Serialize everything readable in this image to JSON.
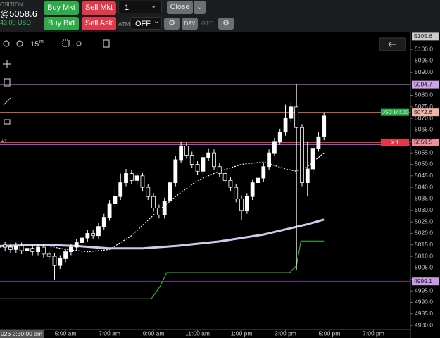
{
  "toolbar": {
    "position": "OSITION",
    "avg_price": "@5058.6",
    "pnl": "43.00 USD",
    "buy_mkt": "Buy Mkt",
    "sell_mkt": "Sell Mkt",
    "buy_bid": "Buy Bid",
    "sell_ask": "Sell Ask",
    "quantity": "1",
    "close": "Close",
    "atm": "ATM",
    "atm_value": "OFF",
    "day": "DAY",
    "gtc": "GTC"
  },
  "chart_toolbar": {
    "interval": "15",
    "interval_unit": "m",
    "order_qty": "+1"
  },
  "chart_data": {
    "type": "candlestick",
    "xlim": [
      2.02,
      20.68
    ],
    "xticks": [
      {
        "value": 5,
        "label": "5:00 am"
      },
      {
        "value": 7,
        "label": "7:00 am"
      },
      {
        "value": 9,
        "label": "9:00 am"
      },
      {
        "value": 11,
        "label": "11:00 am"
      },
      {
        "value": 13,
        "label": "1:00 pm"
      },
      {
        "value": 15,
        "label": "3:00 pm"
      },
      {
        "value": 17,
        "label": "5:00 pm"
      },
      {
        "value": 19,
        "label": "7:00 pm"
      }
    ],
    "ylim": [
      4978.2,
      5107.7
    ],
    "yticks": [
      {
        "value": 4980,
        "label": "4980.0"
      },
      {
        "value": 4985,
        "label": "4985.0"
      },
      {
        "value": 4990,
        "label": "4990.0"
      },
      {
        "value": 4995,
        "label": "4995.0"
      },
      {
        "value": 5000,
        "label": "5000.0"
      },
      {
        "value": 5005,
        "label": "5005.0"
      },
      {
        "value": 5010,
        "label": "5010.0"
      },
      {
        "value": 5015,
        "label": "5015.0"
      },
      {
        "value": 5020,
        "label": "5020.0"
      },
      {
        "value": 5025,
        "label": "5025.0"
      },
      {
        "value": 5030,
        "label": "5030.0"
      },
      {
        "value": 5035,
        "label": "5035.0"
      },
      {
        "value": 5040,
        "label": "5040.0"
      },
      {
        "value": 5045,
        "label": "5045.0"
      },
      {
        "value": 5050,
        "label": "5050.0"
      },
      {
        "value": 5055,
        "label": "5055.0"
      },
      {
        "value": 5060,
        "label": "5060.0"
      },
      {
        "value": 5065,
        "label": "5065.0"
      },
      {
        "value": 5070,
        "label": "5070.0"
      },
      {
        "value": 5075,
        "label": "5075.0"
      },
      {
        "value": 5080,
        "label": "5080.0"
      },
      {
        "value": 5085,
        "label": "5085.0"
      },
      {
        "value": 5090,
        "label": "5090.0"
      },
      {
        "value": 5095,
        "label": "5095.0"
      },
      {
        "value": 5100,
        "label": "5100.0"
      }
    ],
    "x": [
      2.25,
      2.5,
      2.75,
      3,
      3.25,
      3.5,
      3.75,
      4,
      4.25,
      4.5,
      4.75,
      5,
      5.25,
      5.5,
      5.75,
      6,
      6.25,
      6.5,
      6.75,
      7,
      7.25,
      7.5,
      7.75,
      8,
      8.25,
      8.5,
      8.75,
      9,
      9.25,
      9.5,
      9.75,
      10,
      10.25,
      10.5,
      10.75,
      11,
      11.25,
      11.5,
      11.75,
      12,
      12.25,
      12.5,
      12.75,
      13,
      13.25,
      13.5,
      13.75,
      14,
      14.25,
      14.5,
      14.75,
      15,
      15.25,
      15.5,
      15.75,
      16,
      16.25,
      16.5,
      16.75
    ],
    "open": [
      5015,
      5014,
      5013,
      5014.5,
      5012.5,
      5013.5,
      5012,
      5014,
      5011,
      5010,
      5006,
      5009,
      5012,
      5014,
      5016,
      5018,
      5020,
      5019,
      5023,
      5027,
      5033,
      5036,
      5042,
      5046,
      5043,
      5045,
      5040,
      5036,
      5031,
      5028,
      5034,
      5042,
      5052,
      5058,
      5054,
      5050,
      5047,
      5053,
      5055,
      5049,
      5046,
      5043,
      5040,
      5035,
      5030,
      5036,
      5042,
      5044,
      5049,
      5055,
      5060,
      5064,
      5070,
      5075,
      5066,
      5042,
      5048,
      5057,
      5062
    ],
    "high": [
      5016.5,
      5015.5,
      5016,
      5016,
      5015,
      5015,
      5015.5,
      5015.5,
      5012.5,
      5011.5,
      5010.5,
      5013.5,
      5015.5,
      5017.5,
      5019.5,
      5021.5,
      5021.5,
      5024.5,
      5028.5,
      5034.5,
      5040,
      5046,
      5048,
      5047.5,
      5046.5,
      5046.5,
      5041.5,
      5037.5,
      5032.5,
      5035.5,
      5043.5,
      5053.5,
      5060,
      5059.5,
      5055.5,
      5051.5,
      5054.5,
      5057,
      5056.5,
      5050.5,
      5047.5,
      5044.5,
      5041.5,
      5036.5,
      5037.5,
      5043.5,
      5045.5,
      5050.5,
      5056.5,
      5061.5,
      5065.5,
      5076,
      5077,
      5084.7,
      5067.5,
      5060,
      5058.5,
      5064,
      5072.6
    ],
    "low": [
      5012.5,
      5011.5,
      5011.5,
      5011,
      5011,
      5010.5,
      5010.5,
      5009.5,
      5008.5,
      5000,
      5004.5,
      5007.5,
      5010.5,
      5012.5,
      5014.5,
      5016.5,
      5017.5,
      5017.5,
      5021.5,
      5025.5,
      5031.5,
      5034.5,
      5040.5,
      5041.5,
      5041.5,
      5038.5,
      5034.5,
      5029.5,
      5026.5,
      5026.5,
      5032.5,
      5040.5,
      5050.5,
      5052.5,
      5048.5,
      5045.5,
      5045.5,
      5051.5,
      5047.5,
      5044.5,
      5041.5,
      5038.5,
      5033.5,
      5026,
      5028.5,
      5034.5,
      5040.5,
      5042.5,
      5047.5,
      5053.5,
      5058.5,
      5062.5,
      5068.5,
      5004,
      5040.5,
      5036,
      5046.5,
      5055.5,
      5060.5
    ],
    "close": [
      5014,
      5013,
      5014.5,
      5012.5,
      5013.5,
      5012,
      5014,
      5011,
      5010,
      5006,
      5009,
      5012,
      5014,
      5016,
      5018,
      5020,
      5019,
      5023,
      5027,
      5033,
      5036,
      5042,
      5046,
      5043,
      5045,
      5040,
      5036,
      5031,
      5028,
      5034,
      5042,
      5052,
      5058,
      5054,
      5050,
      5047,
      5053,
      5055,
      5049,
      5046,
      5043,
      5040,
      5035,
      5030,
      5036,
      5042,
      5044,
      5049,
      5055,
      5060,
      5064,
      5070,
      5075,
      5066,
      5042,
      5048,
      5057,
      5062,
      5071
    ],
    "up_color": "#ffffff",
    "down_color": "#000000",
    "lines": [
      {
        "color": "#ffffff",
        "width": 1.2,
        "dash": true,
        "x": [
          2.02,
          4,
          5,
          6,
          7,
          8,
          9,
          10,
          11,
          12,
          13,
          14,
          15,
          15.5,
          16,
          16.75
        ],
        "values": [
          5014,
          5015,
          5013,
          5012,
          5013,
          5019,
          5028,
          5036,
          5043,
          5047,
          5050,
          5051,
          5048,
          5047,
          5049,
          5055
        ]
      },
      {
        "color": "#d9c6ee",
        "width": 3,
        "dash": false,
        "x": [
          2.02,
          4,
          5.5,
          7,
          8.5,
          10,
          12,
          14,
          16,
          16.75
        ],
        "values": [
          5014.5,
          5015,
          5014.5,
          5013.5,
          5013.5,
          5014.5,
          5016.5,
          5019.5,
          5024,
          5026
        ]
      },
      {
        "color": "#39c239",
        "width": 1,
        "dash": false,
        "x": [
          2.02,
          8.9,
          9.3,
          9.6,
          15.2,
          15.5,
          15.7,
          16.75
        ],
        "values": [
          4991.6,
          4991.6,
          4997,
          5003,
          5003,
          5006,
          5016.7,
          5016.7
        ]
      }
    ],
    "levels": [
      {
        "value": 5084.7,
        "color": "#b96fdc",
        "box": "#cfa3e8",
        "show_label": true
      },
      {
        "value": 5072.6,
        "color": "#e0684f",
        "box": "#f0b5a7",
        "show_label": true,
        "tag": "USD 143.00",
        "tag_color": "#2fae4e"
      },
      {
        "value": 5059.5,
        "color": "#e8354a",
        "box": "#ef8d9a",
        "show_label": true,
        "tag": "X  1",
        "tag_color": "#e8354a"
      },
      {
        "value": 5058.6,
        "color": "#a565d6",
        "box": "#a565d6",
        "show_label": false
      },
      {
        "value": 4999.1,
        "color": "#9a2fd2",
        "box": "#c89be3",
        "show_label": true
      }
    ],
    "top_price": 5105.6,
    "crosshair_time_label": "026 2:30:00 am"
  }
}
